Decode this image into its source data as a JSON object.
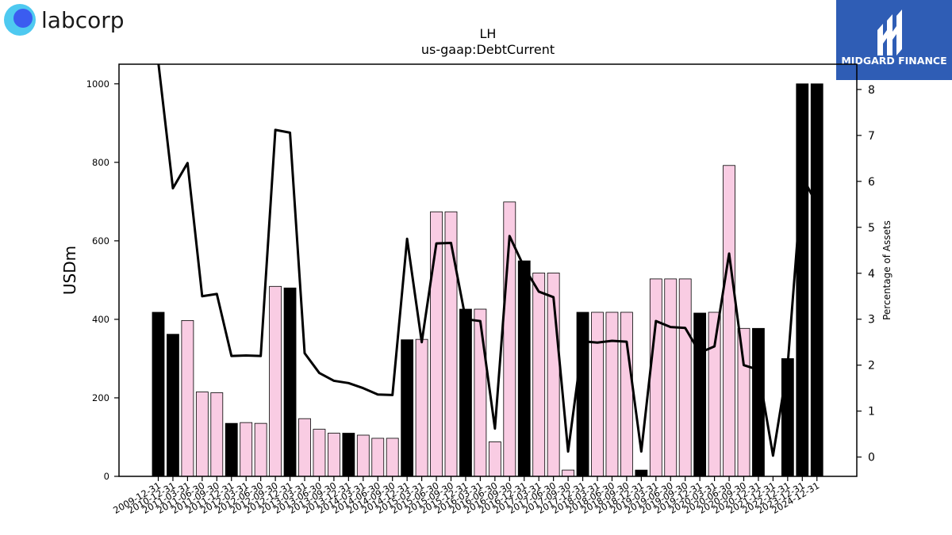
{
  "logos": {
    "left_brand": "labcorp",
    "right_brand": "MIDGARD FINANCE",
    "left_colors": {
      "outer": "#4ec9f0",
      "inner": "#3b5cf0"
    },
    "right_background": "#2f5db5"
  },
  "chart_data": {
    "type": "bar",
    "title": "LH",
    "subtitle": "us-gaap:DebtCurrent",
    "ylabel": "USDm",
    "ylabel_right": "Percentage of Assets",
    "ylim": [
      0,
      1050
    ],
    "ylim_right": [
      -0.42,
      8.55
    ],
    "yticks": [
      0,
      200,
      400,
      600,
      800,
      1000
    ],
    "yticks_right": [
      0,
      1,
      2,
      3,
      4,
      5,
      6,
      7,
      8
    ],
    "grid": false,
    "legend": "none",
    "categories": [
      "2009-12-31",
      "2010-12-31",
      "2011-03-31",
      "2011-06-30",
      "2011-09-30",
      "2011-12-31",
      "2012-03-31",
      "2012-06-30",
      "2012-09-30",
      "2012-12-31",
      "2013-03-31",
      "2013-06-30",
      "2013-09-30",
      "2013-12-31",
      "2014-03-31",
      "2014-06-30",
      "2014-09-30",
      "2014-12-31",
      "2015-03-31",
      "2015-06-30",
      "2015-09-30",
      "2015-12-31",
      "2016-03-31",
      "2016-06-30",
      "2016-09-30",
      "2016-12-31",
      "2017-03-31",
      "2017-06-30",
      "2017-09-30",
      "2017-12-31",
      "2018-03-31",
      "2018-06-30",
      "2018-09-30",
      "2018-12-31",
      "2019-03-31",
      "2019-06-30",
      "2019-09-30",
      "2019-12-31",
      "2020-03-31",
      "2020-06-30",
      "2020-09-30",
      "2020-12-31",
      "2021-12-31",
      "2022-12-31",
      "2023-12-31",
      "2024-12-31"
    ],
    "bars": {
      "values": [
        418,
        362,
        397,
        215,
        213,
        135,
        137,
        135,
        484,
        480,
        147,
        120,
        110,
        110,
        105,
        97,
        97,
        348,
        349,
        674,
        674,
        426,
        426,
        88,
        699,
        549,
        518,
        518,
        16,
        418,
        418,
        418,
        418,
        16,
        503,
        503,
        503,
        416,
        418,
        792,
        377,
        377,
        0,
        300,
        1000,
        1000
      ],
      "annual_flag": [
        true,
        true,
        false,
        false,
        false,
        true,
        false,
        false,
        false,
        true,
        false,
        false,
        false,
        true,
        false,
        false,
        false,
        true,
        false,
        false,
        false,
        true,
        false,
        false,
        false,
        true,
        false,
        false,
        false,
        true,
        false,
        false,
        false,
        true,
        false,
        false,
        false,
        true,
        false,
        false,
        false,
        true,
        true,
        true,
        true,
        true
      ],
      "annual_color": "#000000",
      "quarterly_color": "#f9cce3"
    },
    "line": {
      "name": "Percentage of Assets",
      "color": "#000000",
      "values": [
        8.6,
        5.85,
        6.4,
        3.5,
        3.55,
        2.2,
        2.21,
        2.2,
        7.12,
        7.06,
        2.26,
        1.83,
        1.66,
        1.61,
        1.5,
        1.36,
        1.35,
        4.75,
        2.5,
        4.65,
        4.66,
        3.0,
        2.96,
        0.62,
        4.81,
        4.13,
        3.6,
        3.48,
        0.12,
        2.52,
        2.49,
        2.53,
        2.51,
        0.12,
        2.96,
        2.83,
        2.81,
        2.27,
        2.41,
        4.43,
        2.0,
        1.9,
        0.03,
        2.0,
        6.1,
        5.5
      ]
    }
  }
}
